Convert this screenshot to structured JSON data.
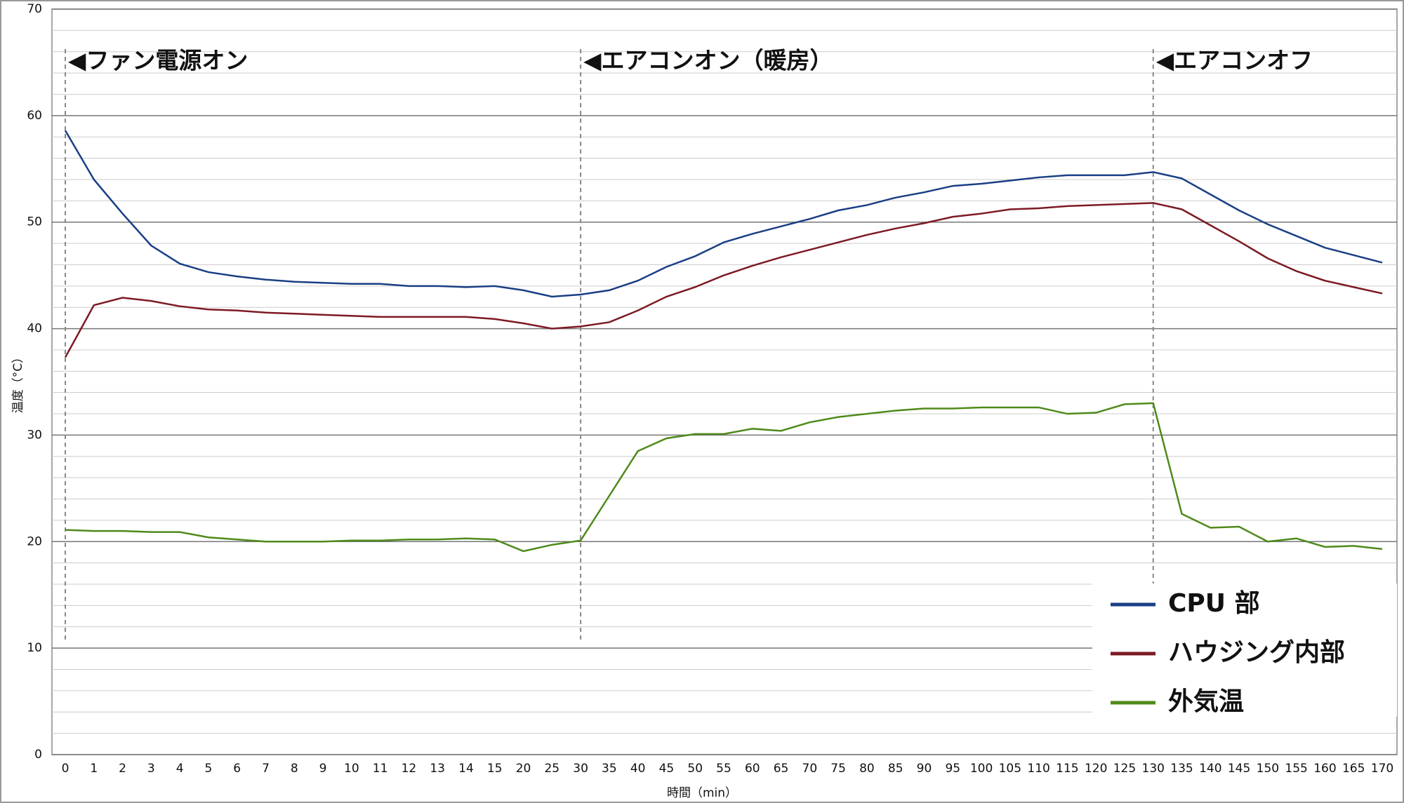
{
  "chart_data": {
    "type": "line",
    "x_label": "時間（min）",
    "y_label": "温度（°C）",
    "categories": [
      "0",
      "1",
      "2",
      "3",
      "4",
      "5",
      "6",
      "7",
      "8",
      "9",
      "10",
      "11",
      "12",
      "13",
      "14",
      "15",
      "20",
      "25",
      "30",
      "35",
      "40",
      "45",
      "50",
      "55",
      "60",
      "65",
      "70",
      "75",
      "80",
      "85",
      "90",
      "95",
      "100",
      "105",
      "110",
      "115",
      "120",
      "125",
      "130",
      "135",
      "140",
      "145",
      "150",
      "155",
      "160",
      "165",
      "170"
    ],
    "series": [
      {
        "name": "CPU 部",
        "color": "#1a3f85",
        "values": [
          58.6,
          54.0,
          50.8,
          47.8,
          46.1,
          45.3,
          44.9,
          44.6,
          44.4,
          44.3,
          44.2,
          44.2,
          44.0,
          44.0,
          43.9,
          44.0,
          43.6,
          43.0,
          43.2,
          43.6,
          44.5,
          45.8,
          46.8,
          48.1,
          48.9,
          49.6,
          50.3,
          51.1,
          51.6,
          52.3,
          52.8,
          53.4,
          53.6,
          53.9,
          54.2,
          54.4,
          54.4,
          54.4,
          54.7,
          54.1,
          52.6,
          51.1,
          49.8,
          48.7,
          47.6,
          46.9,
          46.2
        ]
      },
      {
        "name": "ハウジング内部",
        "color": "#7d1a24",
        "values": [
          37.3,
          42.2,
          42.9,
          42.6,
          42.1,
          41.8,
          41.7,
          41.5,
          41.4,
          41.3,
          41.2,
          41.1,
          41.1,
          41.1,
          41.1,
          40.9,
          40.5,
          40.0,
          40.2,
          40.6,
          41.7,
          43.0,
          43.9,
          45.0,
          45.9,
          46.7,
          47.4,
          48.1,
          48.8,
          49.4,
          49.9,
          50.5,
          50.8,
          51.2,
          51.3,
          51.5,
          51.6,
          51.7,
          51.8,
          51.2,
          49.7,
          48.2,
          46.6,
          45.4,
          44.5,
          43.9,
          43.3
        ]
      },
      {
        "name": "外気温",
        "color": "#4f8a1a",
        "values": [
          21.1,
          21.0,
          21.0,
          20.9,
          20.9,
          20.4,
          20.2,
          20.0,
          20.0,
          20.0,
          20.1,
          20.1,
          20.2,
          20.2,
          20.3,
          20.2,
          19.1,
          19.7,
          20.1,
          24.3,
          28.5,
          29.7,
          30.1,
          30.1,
          30.6,
          30.4,
          31.2,
          31.7,
          32.0,
          32.3,
          32.5,
          32.5,
          32.6,
          32.6,
          32.6,
          32.0,
          32.1,
          32.9,
          33.0,
          22.6,
          21.3,
          21.4,
          20.0,
          20.3,
          19.5,
          19.6,
          19.3
        ]
      }
    ],
    "annotations": [
      {
        "text": "◀ファン電源オン",
        "x": "0"
      },
      {
        "text": "◀エアコンオン（暖房）",
        "x": "30"
      },
      {
        "text": "◀エアコンオフ",
        "x": "130"
      }
    ],
    "ylim": [
      0,
      70
    ],
    "yticks": [
      0,
      10,
      20,
      30,
      40,
      50,
      60,
      70
    ],
    "grid": true,
    "minor_grid_step": 2,
    "legend": "lower right"
  }
}
